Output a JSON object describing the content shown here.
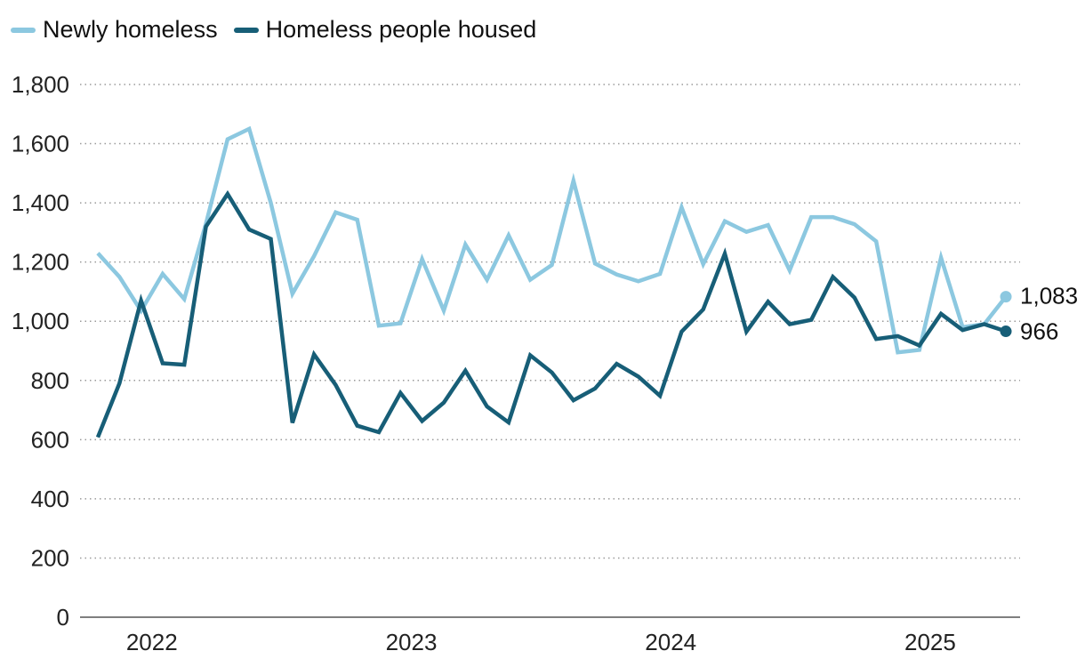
{
  "chart_data": {
    "type": "line",
    "title": "",
    "xlabel": "",
    "ylabel": "",
    "ylim": [
      0,
      1800
    ],
    "yticks": [
      0,
      200,
      400,
      600,
      800,
      1000,
      1200,
      1400,
      1600,
      1800
    ],
    "ytick_labels": [
      "0",
      "200",
      "400",
      "600",
      "800",
      "1,000",
      "1,200",
      "1,400",
      "1,600",
      "1,800"
    ],
    "x_year_labels": [
      "2022",
      "2023",
      "2024",
      "2025"
    ],
    "x_year_centers": [
      2.5,
      14.5,
      26.5,
      38.5
    ],
    "grid": "horizontal dotted",
    "legend": "top-left",
    "series": [
      {
        "name": "Newly homeless",
        "color": "#8cc8e0",
        "values": [
          1230,
          1150,
          1035,
          1160,
          1075,
          1330,
          1615,
          1650,
          1400,
          1093,
          1220,
          1368,
          1343,
          985,
          993,
          1210,
          1036,
          1259,
          1140,
          1290,
          1140,
          1190,
          1475,
          1195,
          1158,
          1135,
          1160,
          1385,
          1193,
          1338,
          1302,
          1325,
          1172,
          1352,
          1352,
          1328,
          1270,
          895,
          903,
          1215,
          980,
          990,
          1083
        ],
        "end_label": "1,083"
      },
      {
        "name": "Homeless people housed",
        "color": "#175e77",
        "values": [
          608,
          790,
          1070,
          858,
          853,
          1320,
          1430,
          1310,
          1278,
          657,
          888,
          785,
          647,
          625,
          758,
          663,
          725,
          833,
          712,
          658,
          885,
          827,
          733,
          773,
          856,
          813,
          748,
          965,
          1040,
          1228,
          965,
          1066,
          990,
          1005,
          1150,
          1080,
          940,
          950,
          918,
          1025,
          970,
          990,
          966
        ],
        "end_label": "966"
      }
    ]
  }
}
